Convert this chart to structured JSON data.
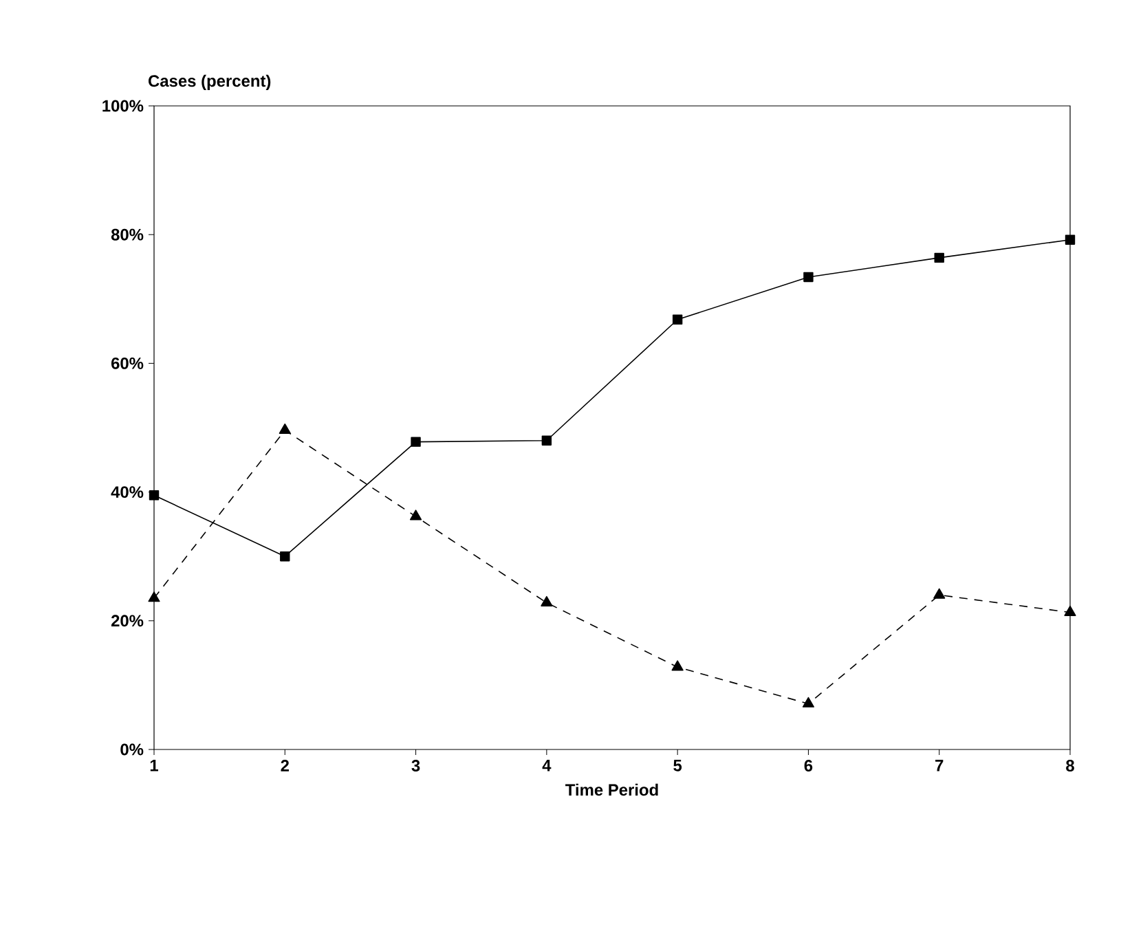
{
  "chart_data": {
    "type": "line",
    "xlabel": "Time Period",
    "ylabel": "Cases (percent)",
    "x": [
      1,
      2,
      3,
      4,
      5,
      6,
      7,
      8
    ],
    "series": [
      {
        "color": "#000000",
        "marker": "square",
        "line_style": "solid",
        "values": [
          39.5,
          30.0,
          47.8,
          48.0,
          66.8,
          73.4,
          76.4,
          79.2
        ]
      },
      {
        "color": "#000000",
        "marker": "triangle",
        "line_style": "dashed",
        "values": [
          23.5,
          49.6,
          36.2,
          22.8,
          12.8,
          7.1,
          24.0,
          21.3
        ]
      }
    ],
    "xlim": [
      1,
      8
    ],
    "xticks": [
      1,
      2,
      3,
      4,
      5,
      6,
      7,
      8
    ],
    "ylim": [
      0,
      100
    ],
    "yticks": [
      {
        "value": 0,
        "label": "0%"
      },
      {
        "value": 20,
        "label": "20%"
      },
      {
        "value": 40,
        "label": "40%"
      },
      {
        "value": 60,
        "label": "60%"
      },
      {
        "value": 80,
        "label": "80%"
      },
      {
        "value": 100,
        "label": "100%"
      }
    ],
    "grid": false
  }
}
